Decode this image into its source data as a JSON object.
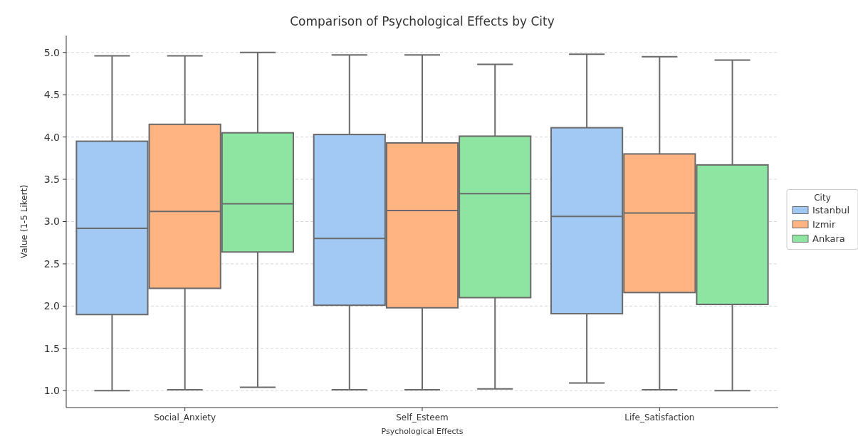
{
  "chart_data": {
    "type": "box",
    "title": "Comparison of Psychological Effects by City",
    "xlabel": "Psychological Effects",
    "ylabel": "Value (1-5 Likert)",
    "legend_title": "City",
    "legend": "right",
    "grid": "y",
    "categories": [
      "Social_Anxiety",
      "Self_Esteem",
      "Life_Satisfaction"
    ],
    "ylim": [
      0.8,
      5.2
    ],
    "yticks": [
      {
        "value": 1,
        "label": "1.0"
      },
      {
        "value": 1.5,
        "label": "1.5"
      },
      {
        "value": 2,
        "label": "2.0"
      },
      {
        "value": 2.5,
        "label": "2.5"
      },
      {
        "value": 3,
        "label": "3.0"
      },
      {
        "value": 3.5,
        "label": "3.5"
      },
      {
        "value": 4,
        "label": "4.0"
      },
      {
        "value": 4.5,
        "label": "4.5"
      },
      {
        "value": 5,
        "label": "5.0"
      }
    ],
    "series": [
      {
        "name": "Istanbul",
        "color": "#a1c9f4",
        "boxes": [
          {
            "low": 1.0,
            "q1": 1.9,
            "median": 2.92,
            "q3": 3.95,
            "high": 4.96
          },
          {
            "low": 1.01,
            "q1": 2.01,
            "median": 2.8,
            "q3": 4.03,
            "high": 4.97
          },
          {
            "low": 1.09,
            "q1": 1.91,
            "median": 3.06,
            "q3": 4.11,
            "high": 4.98
          }
        ]
      },
      {
        "name": "Izmir",
        "color": "#ffb482",
        "boxes": [
          {
            "low": 1.01,
            "q1": 2.21,
            "median": 3.12,
            "q3": 4.15,
            "high": 4.96
          },
          {
            "low": 1.01,
            "q1": 1.98,
            "median": 3.13,
            "q3": 3.93,
            "high": 4.97
          },
          {
            "low": 1.01,
            "q1": 2.16,
            "median": 3.1,
            "q3": 3.8,
            "high": 4.95
          }
        ]
      },
      {
        "name": "Ankara",
        "color": "#8de5a1",
        "boxes": [
          {
            "low": 1.04,
            "q1": 2.64,
            "median": 3.21,
            "q3": 4.05,
            "high": 5.0
          },
          {
            "low": 1.02,
            "q1": 2.1,
            "median": 3.33,
            "q3": 4.01,
            "high": 4.86
          },
          {
            "low": 1.0,
            "q1": 2.02,
            "median": null,
            "q3": 3.67,
            "high": 4.91
          }
        ]
      }
    ]
  }
}
